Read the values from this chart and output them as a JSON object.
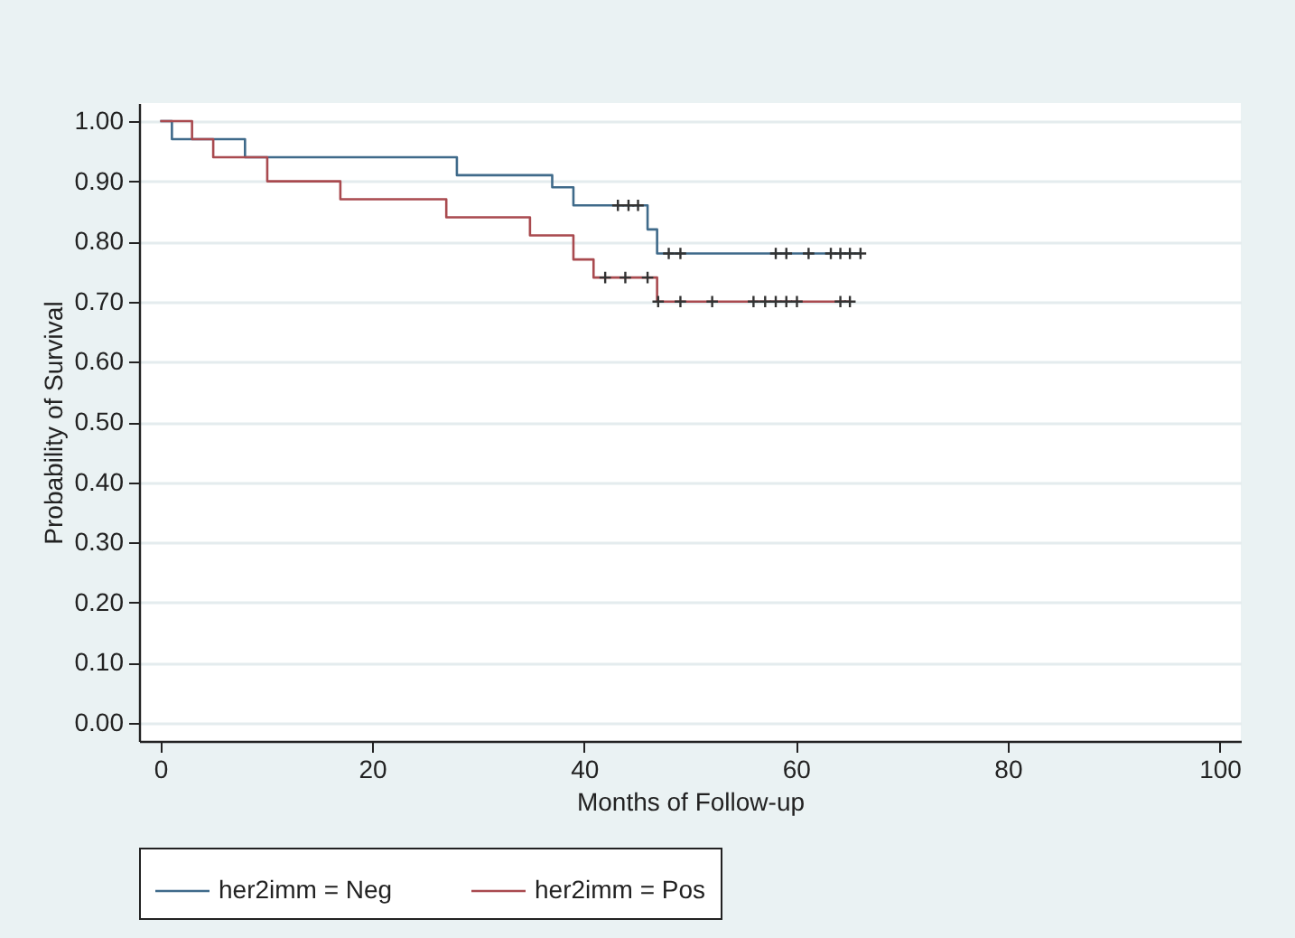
{
  "chart_data": {
    "type": "step",
    "xlabel": "Months of Follow-up",
    "ylabel": "Probability of Survival",
    "xlim": [
      -2,
      102
    ],
    "xticks": [
      0,
      20,
      40,
      60,
      80,
      100
    ],
    "ylim": [
      -0.03,
      1.03
    ],
    "yticks": [
      {
        "value": 0,
        "label": "0.00"
      },
      {
        "value": 0.1,
        "label": "0.10"
      },
      {
        "value": 0.2,
        "label": "0.20"
      },
      {
        "value": 0.3,
        "label": "0.30"
      },
      {
        "value": 0.4,
        "label": "0.40"
      },
      {
        "value": 0.5,
        "label": "0.50"
      },
      {
        "value": 0.6,
        "label": "0.60"
      },
      {
        "value": 0.7,
        "label": "0.70"
      },
      {
        "value": 0.8,
        "label": "0.80"
      },
      {
        "value": 0.9,
        "label": "0.90"
      },
      {
        "value": 1,
        "label": "1.00"
      }
    ],
    "grid": "y",
    "legend": "bottom",
    "series": [
      {
        "name": "her2imm = Neg",
        "color": "#3f6a8a",
        "x": [
          0,
          1.1,
          8,
          28,
          37,
          39,
          46,
          46.9,
          66.1
        ],
        "values": [
          1,
          0.97,
          0.94,
          0.91,
          0.89,
          0.86,
          0.82,
          0.78,
          0.78
        ]
      },
      {
        "name": "her2imm = Pos",
        "color": "#a94a4f",
        "x": [
          0,
          3,
          5,
          10.1,
          17,
          27,
          34.9,
          39,
          40.9,
          46.9,
          65.1
        ],
        "values": [
          1,
          0.97,
          0.94,
          0.9,
          0.87,
          0.84,
          0.81,
          0.77,
          0.74,
          0.7,
          0.7
        ]
      },
      {
        "type": "scatter",
        "color": "#333333",
        "marker": "cross",
        "x": [
          43.2,
          44.2,
          45.1,
          48,
          49.1,
          58.1,
          59.1,
          61.2,
          63.3,
          64.2,
          65.1,
          66.1,
          42,
          43.9,
          46,
          47,
          49.1,
          52.1,
          56,
          57.1,
          58.1,
          59.1,
          60.1,
          64.2,
          65.1
        ],
        "values": [
          0.86,
          0.86,
          0.86,
          0.78,
          0.78,
          0.78,
          0.78,
          0.78,
          0.78,
          0.78,
          0.78,
          0.78,
          0.74,
          0.74,
          0.74,
          0.7,
          0.7,
          0.7,
          0.7,
          0.7,
          0.7,
          0.7,
          0.7,
          0.7,
          0.7
        ]
      }
    ]
  }
}
